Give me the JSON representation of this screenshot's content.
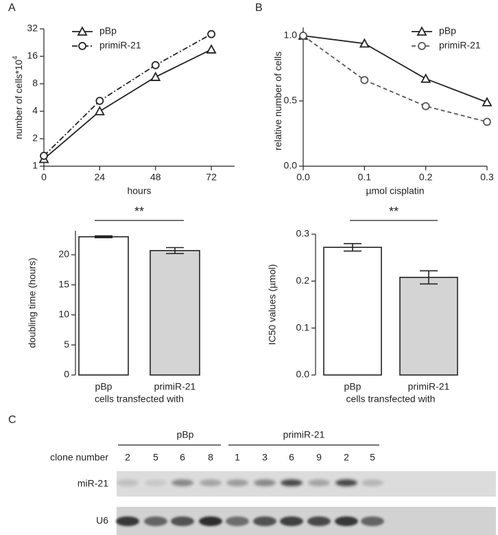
{
  "chart_data": [
    {
      "type": "line",
      "xlabel": "hours",
      "ylabel": "number of cells*10",
      "ylabel_superscript": "4",
      "x": [
        0,
        24,
        48,
        72
      ],
      "xlim": [
        0,
        82
      ],
      "xticks": [
        0,
        24,
        48,
        72
      ],
      "ylim": [
        1,
        32
      ],
      "yticks": [
        1,
        2,
        4,
        8,
        16,
        32
      ],
      "log_y": 2,
      "legend": "upper left",
      "series": [
        {
          "name": "pBp",
          "color": "#222222",
          "marker": "triangle",
          "linestyle": "solid",
          "values": [
            1.2,
            4.0,
            9.5,
            19
          ]
        },
        {
          "name": "primiR-21",
          "color": "#222222",
          "marker": "circle",
          "linestyle": "dashdot",
          "values": [
            1.3,
            5.2,
            12.8,
            28
          ]
        }
      ]
    },
    {
      "type": "line",
      "xlabel": "µmol cisplatin",
      "ylabel": "relative number of cells",
      "x": [
        0,
        0.1,
        0.2,
        0.3
      ],
      "xlim": [
        0,
        0.3
      ],
      "xticks": [
        {
          "value": 0,
          "label": "0.0"
        },
        {
          "value": 0.1,
          "label": "0.1"
        },
        {
          "value": 0.2,
          "label": "0.2"
        },
        {
          "value": 0.3,
          "label": "0.3"
        }
      ],
      "ylim": [
        0,
        1
      ],
      "yticks": [
        {
          "value": 0,
          "label": "0.0"
        },
        {
          "value": 0.5,
          "label": "0.5"
        },
        {
          "value": 1,
          "label": "1.0"
        }
      ],
      "legend": "upper right",
      "series": [
        {
          "name": "pBp",
          "color": "#222222",
          "marker": "triangle",
          "linestyle": "solid",
          "values": [
            1.0,
            0.94,
            0.67,
            0.49
          ]
        },
        {
          "name": "primiR-21",
          "color": "#555555",
          "marker": "circle",
          "linestyle": "dashed",
          "values": [
            1.0,
            0.66,
            0.46,
            0.34
          ]
        }
      ]
    },
    {
      "type": "bar",
      "xlabel": "cells transfected with",
      "ylabel": "doubling time (hours)",
      "categories": [
        "pBp",
        "primiR-21"
      ],
      "values": [
        23.0,
        20.7
      ],
      "errors": [
        0.15,
        0.5
      ],
      "colors": [
        "#ffffff",
        "#d4d4d4"
      ],
      "ylim": [
        0,
        24
      ],
      "yticks": [
        0,
        5,
        10,
        15,
        20
      ],
      "annotation": "**"
    },
    {
      "type": "bar",
      "xlabel": "cells transfected with",
      "ylabel": "IC50 values (µmol)",
      "categories": [
        "pBp",
        "primiR-21"
      ],
      "values": [
        0.272,
        0.208
      ],
      "errors": [
        0.008,
        0.014
      ],
      "colors": [
        "#ffffff",
        "#d4d4d4"
      ],
      "ylim": [
        0,
        0.3
      ],
      "yticks": [
        {
          "value": 0,
          "label": "0.0"
        },
        {
          "value": 0.1,
          "label": "0.1"
        },
        {
          "value": 0.2,
          "label": "0.2"
        },
        {
          "value": 0.3,
          "label": "0.3"
        }
      ],
      "annotation": "**"
    }
  ],
  "panels": [
    "A",
    "B",
    "C"
  ],
  "blot": {
    "groups": [
      "pBp",
      "primiR-21"
    ],
    "clone_label": "clone number",
    "clones": [
      "2",
      "5",
      "6",
      "8",
      "1",
      "3",
      "6",
      "9",
      "2",
      "5"
    ],
    "rows": [
      "miR-21",
      "U6"
    ]
  }
}
